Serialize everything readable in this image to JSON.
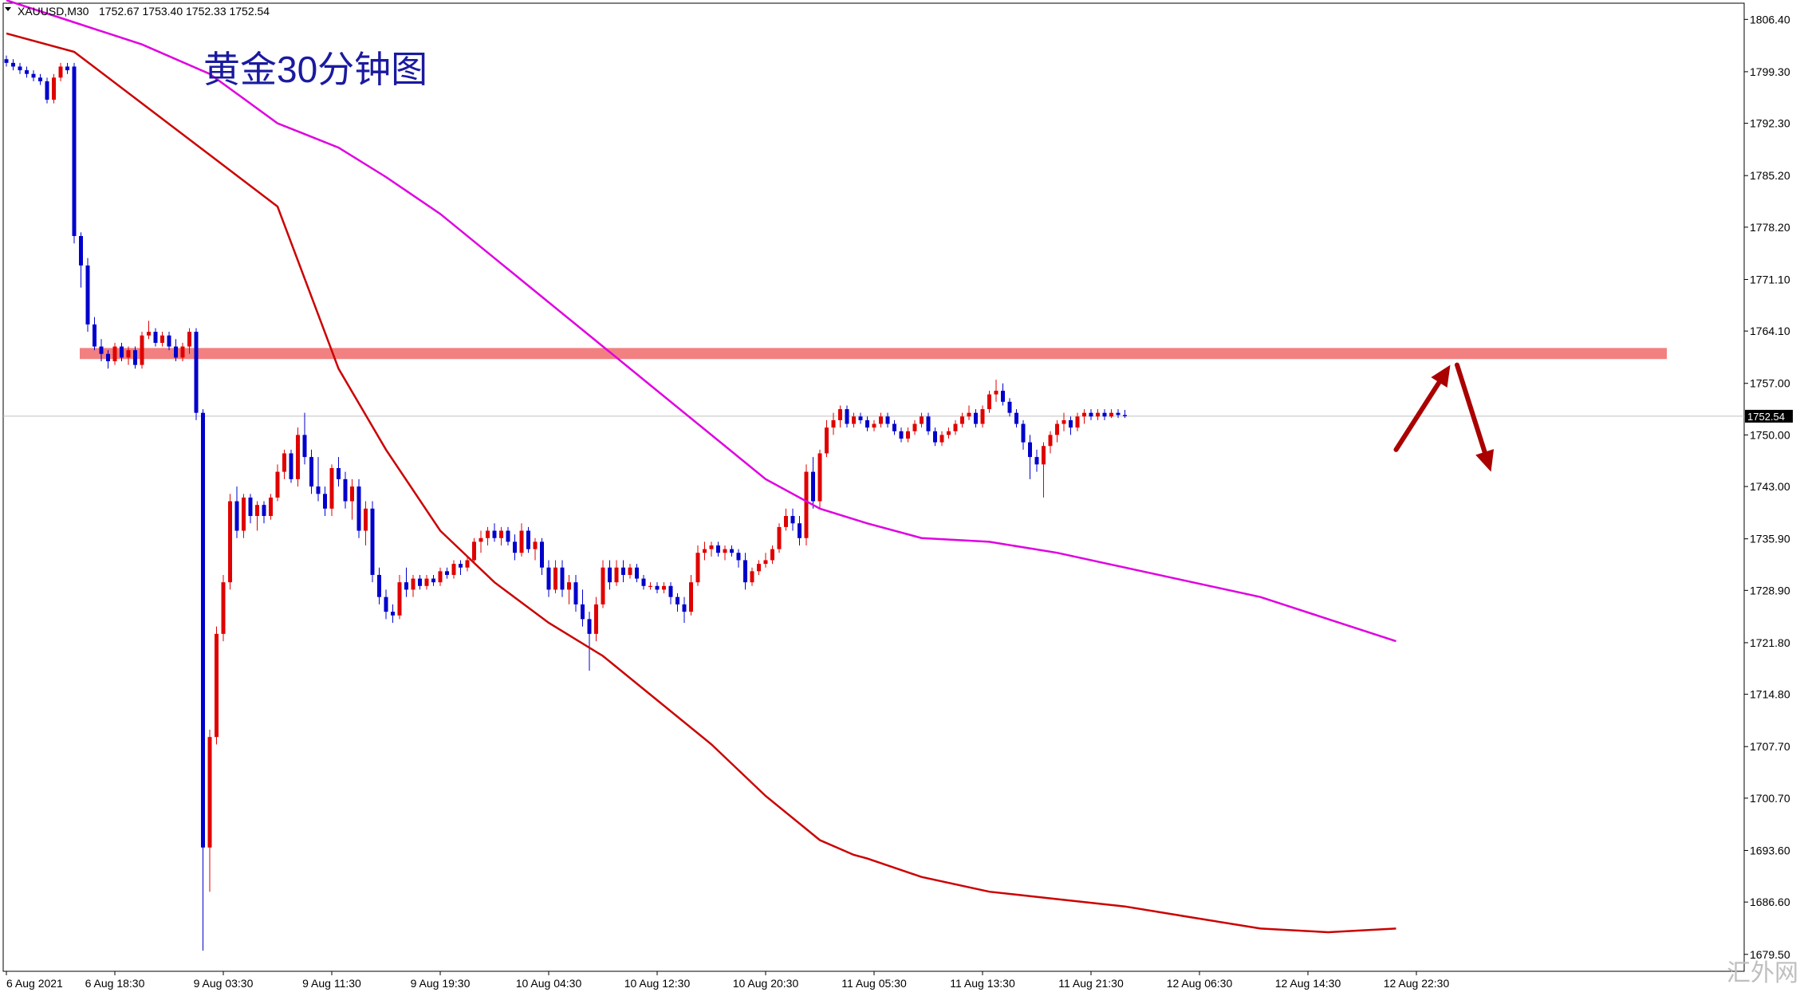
{
  "header": {
    "symbol_label": "XAUUSD,M30",
    "ohlc_text": "1752.67 1753.40 1752.33 1752.54"
  },
  "annotation": {
    "title": "黄金30分钟图"
  },
  "watermark": {
    "text": "汇外网"
  },
  "colors": {
    "bull_candle": "#e00000",
    "bear_candle": "#0000cc",
    "ma_fast": "#cc0000",
    "ma_slow": "#e000e0",
    "resistance_band": "#f28080",
    "arrow": "#aa0000",
    "price_line": "#c0c0c0",
    "axis": "#000000"
  },
  "chart_data": {
    "type": "candlestick",
    "title": "黄金30分钟图",
    "symbol": "XAUUSD",
    "timeframe": "M30",
    "current_price": "1752.54",
    "ylim": [
      1677.2,
      1808.6
    ],
    "yticks": [
      "1806.40",
      "1799.30",
      "1792.30",
      "1785.20",
      "1778.20",
      "1771.10",
      "1764.10",
      "1757.00",
      "1750.00",
      "1743.00",
      "1735.90",
      "1728.90",
      "1721.80",
      "1714.80",
      "1707.70",
      "1700.70",
      "1693.60",
      "1686.60",
      "1679.50"
    ],
    "xticks": [
      {
        "label": "6 Aug 2021",
        "bar": 0
      },
      {
        "label": "6 Aug 18:30",
        "bar": 16
      },
      {
        "label": "9 Aug 03:30",
        "bar": 32
      },
      {
        "label": "9 Aug 11:30",
        "bar": 48
      },
      {
        "label": "9 Aug 19:30",
        "bar": 64
      },
      {
        "label": "10 Aug 04:30",
        "bar": 80
      },
      {
        "label": "10 Aug 12:30",
        "bar": 96
      },
      {
        "label": "10 Aug 20:30",
        "bar": 112
      },
      {
        "label": "11 Aug 05:30",
        "bar": 128
      },
      {
        "label": "11 Aug 13:30",
        "bar": 144
      },
      {
        "label": "11 Aug 21:30",
        "bar": 160
      },
      {
        "label": "12 Aug 06:30",
        "bar": 176
      },
      {
        "label": "12 Aug 14:30",
        "bar": 192
      },
      {
        "label": "12 Aug 22:30",
        "bar": 208
      }
    ],
    "resistance_zone": [
      1760.3,
      1761.8
    ],
    "ohlc": [
      [
        1801,
        1801.5,
        1800,
        1800.5
      ],
      [
        1800.5,
        1801,
        1799.5,
        1800
      ],
      [
        1800,
        1800.5,
        1799,
        1799.5
      ],
      [
        1799.5,
        1800,
        1798.5,
        1799
      ],
      [
        1799,
        1799.5,
        1798,
        1798.5
      ],
      [
        1798.5,
        1799,
        1797.5,
        1798
      ],
      [
        1798,
        1798.5,
        1795,
        1795.5
      ],
      [
        1795.5,
        1799,
        1795,
        1798.5
      ],
      [
        1798.5,
        1800.5,
        1798,
        1800
      ],
      [
        1800,
        1800.5,
        1799,
        1799.5
      ],
      [
        1800,
        1800.5,
        1776,
        1777
      ],
      [
        1777,
        1777.5,
        1770,
        1773
      ],
      [
        1773,
        1774,
        1764,
        1765
      ],
      [
        1765,
        1766,
        1761.5,
        1762
      ],
      [
        1762,
        1763,
        1760,
        1761
      ],
      [
        1761,
        1761.5,
        1759,
        1760
      ],
      [
        1760,
        1762.5,
        1759.5,
        1762
      ],
      [
        1762,
        1762.5,
        1760,
        1760.5
      ],
      [
        1760.5,
        1762,
        1759.5,
        1761.5
      ],
      [
        1761.5,
        1762,
        1759,
        1759.5
      ],
      [
        1759.5,
        1764,
        1759,
        1763.5
      ],
      [
        1763.5,
        1765.5,
        1763,
        1764
      ],
      [
        1764,
        1764.5,
        1762,
        1762.5
      ],
      [
        1762.5,
        1764,
        1762,
        1763.5
      ],
      [
        1763.5,
        1764,
        1761.5,
        1762
      ],
      [
        1762,
        1763,
        1760,
        1760.5
      ],
      [
        1760.5,
        1762.5,
        1760,
        1762
      ],
      [
        1762,
        1764.5,
        1761,
        1764
      ],
      [
        1764,
        1764.5,
        1752,
        1753
      ],
      [
        1753,
        1753.5,
        1680,
        1694
      ],
      [
        1694,
        1710,
        1688,
        1709
      ],
      [
        1709,
        1724,
        1708,
        1723
      ],
      [
        1723,
        1731,
        1722,
        1730
      ],
      [
        1730,
        1742,
        1729,
        1741
      ],
      [
        1741,
        1743,
        1736,
        1737
      ],
      [
        1737,
        1742,
        1736,
        1741.5
      ],
      [
        1741.5,
        1742,
        1738,
        1739
      ],
      [
        1739,
        1741,
        1737,
        1740.5
      ],
      [
        1740.5,
        1741,
        1738,
        1739
      ],
      [
        1739,
        1742,
        1738.5,
        1741.5
      ],
      [
        1741.5,
        1746,
        1741,
        1745
      ],
      [
        1745,
        1748,
        1744,
        1747.5
      ],
      [
        1747.5,
        1748,
        1743.5,
        1744
      ],
      [
        1744,
        1751,
        1743,
        1750
      ],
      [
        1750,
        1753,
        1746,
        1747
      ],
      [
        1747,
        1748,
        1742,
        1743
      ],
      [
        1743,
        1747,
        1741,
        1742
      ],
      [
        1742,
        1743,
        1739,
        1740
      ],
      [
        1740,
        1746,
        1739,
        1745.5
      ],
      [
        1745.5,
        1747,
        1743,
        1744
      ],
      [
        1744,
        1745,
        1740,
        1741
      ],
      [
        1741,
        1744,
        1738.5,
        1743
      ],
      [
        1743,
        1744,
        1736,
        1737
      ],
      [
        1737,
        1741,
        1735,
        1740
      ],
      [
        1740,
        1741,
        1730,
        1731
      ],
      [
        1731,
        1732,
        1727,
        1728
      ],
      [
        1728,
        1729,
        1725,
        1726
      ],
      [
        1726,
        1727,
        1724.5,
        1725.5
      ],
      [
        1725.5,
        1731,
        1725,
        1730
      ],
      [
        1730,
        1732,
        1728,
        1729
      ],
      [
        1729,
        1731,
        1728,
        1730.5
      ],
      [
        1730.5,
        1731,
        1729,
        1729.5
      ],
      [
        1729.5,
        1731,
        1729,
        1730.5
      ],
      [
        1730.5,
        1731,
        1729.5,
        1730
      ],
      [
        1730,
        1732,
        1729.5,
        1731.5
      ],
      [
        1731.5,
        1732,
        1730.5,
        1731
      ],
      [
        1731,
        1733,
        1730.5,
        1732.5
      ],
      [
        1732.5,
        1733,
        1731,
        1732
      ],
      [
        1732,
        1733.5,
        1731.5,
        1733
      ],
      [
        1733,
        1736,
        1732.5,
        1735.5
      ],
      [
        1735.5,
        1737,
        1734,
        1736
      ],
      [
        1736,
        1737.5,
        1735,
        1737
      ],
      [
        1737,
        1738,
        1735.5,
        1736
      ],
      [
        1736,
        1737.5,
        1735,
        1737
      ],
      [
        1737,
        1737.5,
        1735,
        1735.5
      ],
      [
        1735.5,
        1736.5,
        1733,
        1734
      ],
      [
        1734,
        1738,
        1733.5,
        1737
      ],
      [
        1737,
        1737.5,
        1734,
        1734.5
      ],
      [
        1734.5,
        1736,
        1733,
        1735.5
      ],
      [
        1735.5,
        1736,
        1731,
        1732
      ],
      [
        1732,
        1733,
        1728,
        1729
      ],
      [
        1729,
        1733,
        1728.5,
        1732
      ],
      [
        1732,
        1733,
        1728,
        1729
      ],
      [
        1729,
        1731,
        1727,
        1730
      ],
      [
        1730,
        1731,
        1726,
        1727
      ],
      [
        1727,
        1729,
        1724,
        1725
      ],
      [
        1725,
        1726,
        1718,
        1723
      ],
      [
        1723,
        1728,
        1722,
        1727
      ],
      [
        1727,
        1733,
        1726.5,
        1732
      ],
      [
        1732,
        1733,
        1729,
        1730
      ],
      [
        1730,
        1733,
        1729.5,
        1732
      ],
      [
        1732,
        1733,
        1730,
        1731
      ],
      [
        1731,
        1732.5,
        1730.5,
        1732
      ],
      [
        1732,
        1732.5,
        1730,
        1730.5
      ],
      [
        1730.5,
        1731,
        1729,
        1729.5
      ],
      [
        1729.5,
        1730,
        1729,
        1729.5
      ],
      [
        1729.5,
        1730,
        1728.5,
        1729
      ],
      [
        1729,
        1730,
        1728.5,
        1729.5
      ],
      [
        1729.5,
        1730,
        1727,
        1728
      ],
      [
        1728,
        1728.5,
        1726,
        1727
      ],
      [
        1727,
        1728,
        1724.5,
        1726
      ],
      [
        1726,
        1731,
        1725.5,
        1730
      ],
      [
        1730,
        1735,
        1729.5,
        1734
      ],
      [
        1734,
        1735.5,
        1733,
        1734.5
      ],
      [
        1734.5,
        1735.5,
        1733.5,
        1735
      ],
      [
        1735,
        1735.5,
        1733.5,
        1734
      ],
      [
        1734,
        1735,
        1733,
        1734.5
      ],
      [
        1734.5,
        1735,
        1733.5,
        1734
      ],
      [
        1734,
        1734.5,
        1732,
        1733
      ],
      [
        1733,
        1734,
        1729,
        1730
      ],
      [
        1730,
        1732,
        1729.5,
        1731.5
      ],
      [
        1731.5,
        1733,
        1731,
        1732.5
      ],
      [
        1732.5,
        1734,
        1732,
        1733
      ],
      [
        1733,
        1735,
        1732.5,
        1734.5
      ],
      [
        1734.5,
        1738,
        1734,
        1737.5
      ],
      [
        1737.5,
        1740,
        1737,
        1739
      ],
      [
        1739,
        1740,
        1737,
        1738
      ],
      [
        1738,
        1739,
        1735,
        1736
      ],
      [
        1736,
        1746,
        1735,
        1745
      ],
      [
        1745,
        1747,
        1740,
        1741
      ],
      [
        1741,
        1748,
        1740,
        1747.5
      ],
      [
        1747.5,
        1752,
        1747,
        1751
      ],
      [
        1751,
        1753,
        1750,
        1752
      ],
      [
        1752,
        1754,
        1751,
        1753.5
      ],
      [
        1753.5,
        1754,
        1751,
        1751.5
      ],
      [
        1751.5,
        1753,
        1751,
        1752.5
      ],
      [
        1752.5,
        1753,
        1751.5,
        1752
      ],
      [
        1752,
        1752.5,
        1750.5,
        1751
      ],
      [
        1751,
        1752,
        1750.5,
        1751.5
      ],
      [
        1751.5,
        1753,
        1751,
        1752.5
      ],
      [
        1752.5,
        1753,
        1751,
        1751.5
      ],
      [
        1751.5,
        1752,
        1750,
        1750.5
      ],
      [
        1750.5,
        1751,
        1749,
        1749.5
      ],
      [
        1749.5,
        1751,
        1749,
        1750.5
      ],
      [
        1750.5,
        1752,
        1750,
        1751.5
      ],
      [
        1751.5,
        1753,
        1751,
        1752.5
      ],
      [
        1752.5,
        1753,
        1750,
        1750.5
      ],
      [
        1750.5,
        1751,
        1748.5,
        1749
      ],
      [
        1749,
        1750.5,
        1748.5,
        1750
      ],
      [
        1750,
        1751,
        1749.5,
        1750.5
      ],
      [
        1750.5,
        1752,
        1750,
        1751.5
      ],
      [
        1751.5,
        1753,
        1751,
        1752.5
      ],
      [
        1752.5,
        1754,
        1752,
        1753
      ],
      [
        1753,
        1753.5,
        1751,
        1751.5
      ],
      [
        1751.5,
        1754,
        1751,
        1753.5
      ],
      [
        1753.5,
        1756,
        1753,
        1755.5
      ],
      [
        1755.5,
        1757.5,
        1754.5,
        1756
      ],
      [
        1756,
        1757,
        1754,
        1754.5
      ],
      [
        1754.5,
        1755,
        1752.5,
        1753
      ],
      [
        1753,
        1753.5,
        1751,
        1751.5
      ],
      [
        1751.5,
        1752,
        1748,
        1749
      ],
      [
        1749,
        1750,
        1744,
        1747
      ],
      [
        1747,
        1748,
        1745,
        1746
      ],
      [
        1746,
        1749,
        1741.5,
        1748.5
      ],
      [
        1748.5,
        1750.5,
        1747.5,
        1750
      ],
      [
        1750,
        1752,
        1749,
        1751.5
      ],
      [
        1751.5,
        1753,
        1750.5,
        1752
      ],
      [
        1752,
        1752.5,
        1750,
        1751
      ],
      [
        1751,
        1753,
        1750.5,
        1752.5
      ],
      [
        1752.5,
        1753.5,
        1751.5,
        1753
      ],
      [
        1753,
        1753.5,
        1752,
        1752.5
      ],
      [
        1752.5,
        1753.5,
        1752,
        1753
      ],
      [
        1753,
        1753.5,
        1752,
        1752.5
      ],
      [
        1752.5,
        1753.5,
        1752.3,
        1753
      ],
      [
        1753,
        1753.5,
        1752.3,
        1752.7
      ],
      [
        1752.7,
        1753.4,
        1752.3,
        1752.54
      ]
    ],
    "series": [
      {
        "name": "",
        "color": "#cc0000",
        "points": [
          [
            0,
            1804.5
          ],
          [
            10,
            1802
          ],
          [
            20,
            1795
          ],
          [
            30,
            1788
          ],
          [
            40,
            1781
          ],
          [
            49,
            1759
          ],
          [
            56,
            1748
          ],
          [
            64,
            1737
          ],
          [
            72,
            1730
          ],
          [
            80,
            1724.5
          ],
          [
            88,
            1720
          ],
          [
            96,
            1714
          ],
          [
            104,
            1708
          ],
          [
            112,
            1701
          ],
          [
            120,
            1695
          ],
          [
            125,
            1693
          ],
          [
            127,
            1692.5
          ],
          [
            135,
            1690
          ],
          [
            145,
            1688
          ],
          [
            155,
            1687
          ],
          [
            165,
            1686
          ],
          [
            175,
            1684.5
          ],
          [
            185,
            1683
          ],
          [
            195,
            1682.5
          ],
          [
            205,
            1683
          ]
        ]
      },
      {
        "name": "",
        "color": "#e000e0",
        "points": [
          [
            0,
            1809
          ],
          [
            10,
            1806
          ],
          [
            20,
            1803
          ],
          [
            30,
            1799
          ],
          [
            40,
            1792.3
          ],
          [
            49,
            1789
          ],
          [
            56,
            1785
          ],
          [
            64,
            1780
          ],
          [
            72,
            1774
          ],
          [
            80,
            1768
          ],
          [
            88,
            1762
          ],
          [
            96,
            1756
          ],
          [
            104,
            1750
          ],
          [
            112,
            1744
          ],
          [
            120,
            1740
          ],
          [
            127,
            1738
          ],
          [
            135,
            1736
          ],
          [
            145,
            1735.5
          ],
          [
            155,
            1734
          ],
          [
            165,
            1732
          ],
          [
            175,
            1730
          ],
          [
            185,
            1728
          ],
          [
            195,
            1725
          ],
          [
            205,
            1722
          ]
        ]
      }
    ],
    "annotations": {
      "arrow_up": {
        "from": [
          205,
          1748
        ],
        "to": [
          213,
          1759.5
        ]
      },
      "arrow_down": {
        "from": [
          214,
          1759.5
        ],
        "to": [
          219,
          1745
        ]
      }
    }
  }
}
